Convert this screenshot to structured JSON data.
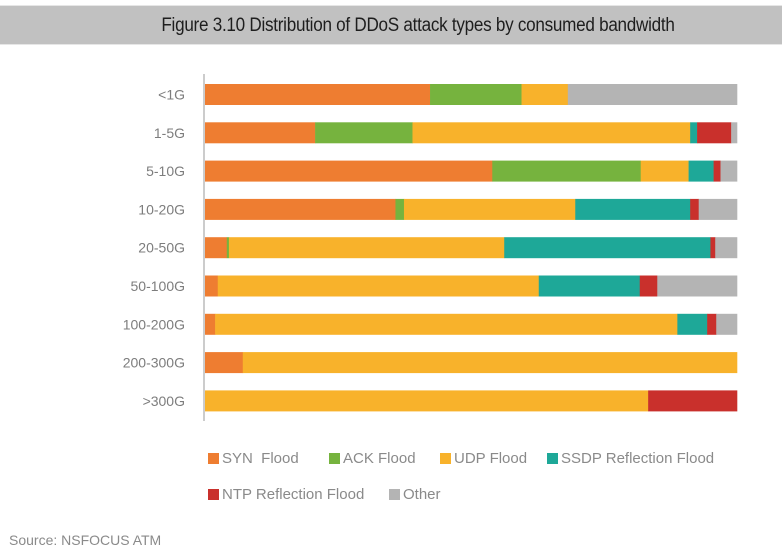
{
  "header": {
    "title": "Figure 3.10 Distribution of DDoS attack types by consumed bandwidth"
  },
  "source": "Source: NSFOCUS ATM",
  "chart_data": {
    "type": "bar",
    "orientation": "horizontal",
    "stacked": "percent",
    "title": "Figure 3.10 Distribution of DDoS attack types by consumed bandwidth",
    "xlabel": "",
    "ylabel": "",
    "xlim": [
      0,
      100
    ],
    "grid": false,
    "legend_position": "bottom",
    "categories": [
      "<1G",
      "1-5G",
      "5-10G",
      "10-20G",
      "20-50G",
      "50-100G",
      "100-200G",
      "200-300G",
      ">300G"
    ],
    "series": [
      {
        "name": "SYN  Flood",
        "color": "#ee7d31",
        "values": [
          42.3,
          20.7,
          54.0,
          35.8,
          4.1,
          2.4,
          1.9,
          7.1,
          0.0
        ]
      },
      {
        "name": "ACK Flood",
        "color": "#76b33e",
        "values": [
          17.2,
          18.3,
          27.9,
          1.6,
          0.4,
          0.0,
          0.0,
          0.0,
          0.0
        ]
      },
      {
        "name": "UDP Flood",
        "color": "#f8b22b",
        "values": [
          8.7,
          52.2,
          9.0,
          32.2,
          51.8,
          60.4,
          86.8,
          92.9,
          83.3
        ]
      },
      {
        "name": "SSDP Reflection Flood",
        "color": "#1ea898",
        "values": [
          0.0,
          1.3,
          4.7,
          21.6,
          38.8,
          19.0,
          5.6,
          0.0,
          0.0
        ]
      },
      {
        "name": "NTP Reflection Flood",
        "color": "#c9302c",
        "values": [
          0.0,
          6.4,
          1.3,
          1.6,
          0.9,
          3.3,
          1.7,
          0.0,
          16.7
        ]
      },
      {
        "name": "Other",
        "color": "#b4b4b4",
        "values": [
          31.8,
          1.1,
          3.1,
          7.2,
          4.1,
          15.0,
          3.9,
          0.0,
          0.0
        ]
      }
    ]
  }
}
